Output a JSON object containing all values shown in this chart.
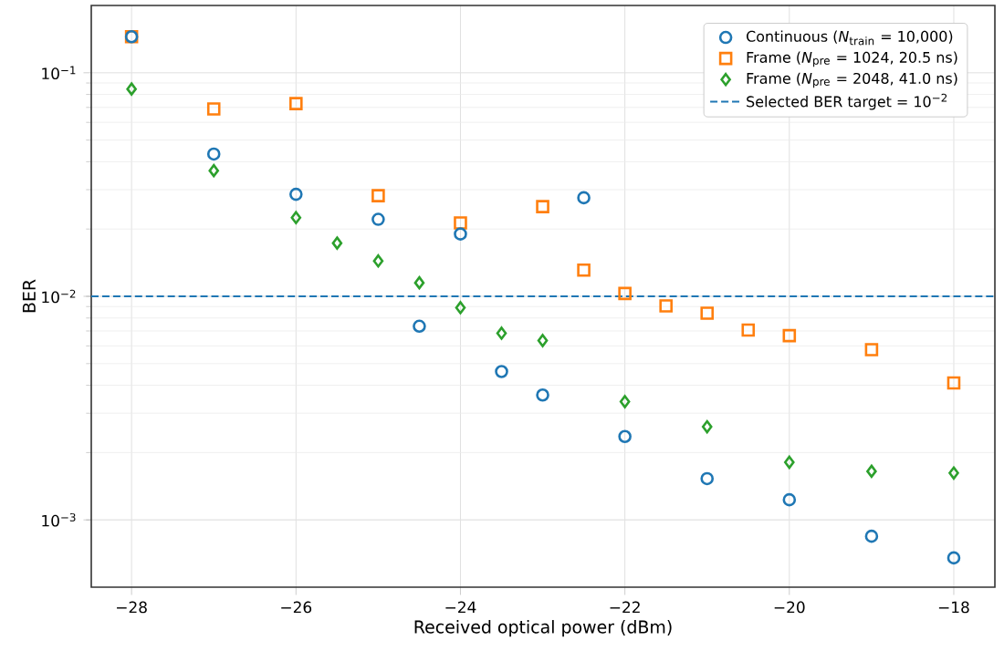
{
  "chart_data": {
    "type": "scatter",
    "xlabel": "Received optical power (dBm)",
    "ylabel": "BER",
    "xlim": [
      -28.49,
      -17.5
    ],
    "ylim": [
      0.0005,
      0.2
    ],
    "log": "y",
    "grid": true,
    "legend": "top right",
    "xticks": [
      {
        "value": -28,
        "label": "−28"
      },
      {
        "value": -26,
        "label": "−26"
      },
      {
        "value": -24,
        "label": "−24"
      },
      {
        "value": -22,
        "label": "−22"
      },
      {
        "value": -20,
        "label": "−20"
      },
      {
        "value": -18,
        "label": "−18"
      }
    ],
    "yticks": [
      {
        "value": 0.001,
        "label": "10$^{−3}$"
      },
      {
        "value": 0.01,
        "label": "10$^{−2}$"
      },
      {
        "value": 0.1,
        "label": "10$^{−1}$"
      }
    ],
    "series": [
      {
        "name": "Continuous (*N*$_{train}$ = 10,000)",
        "color": "#1f77b4",
        "marker": "circle",
        "x": [
          -28,
          -27,
          -26,
          -25,
          -24.5,
          -24,
          -23.5,
          -23,
          -22.5,
          -22,
          -21,
          -20,
          -19,
          -18
        ],
        "values": [
          0.145,
          0.0433,
          0.0286,
          0.0221,
          0.00735,
          0.019,
          0.00461,
          0.00362,
          0.0276,
          0.00236,
          0.00153,
          0.00123,
          0.000845,
          0.000676
        ]
      },
      {
        "name": "Frame (*N*$_{pre}$ = 1024, 20.5 ns)",
        "color": "#ff7f0e",
        "marker": "square",
        "x": [
          -28,
          -27,
          -26,
          -25,
          -24,
          -23,
          -22.5,
          -22,
          -21.5,
          -21,
          -20.5,
          -20,
          -19,
          -18
        ],
        "values": [
          0.145,
          0.0689,
          0.0728,
          0.0282,
          0.0213,
          0.0252,
          0.0131,
          0.0103,
          0.00906,
          0.0084,
          0.00707,
          0.00667,
          0.00577,
          0.0041
        ]
      },
      {
        "name": "Frame (*N*$_{pre}$ = 2048, 41.0 ns)",
        "color": "#2ca02c",
        "marker": "diamond",
        "x": [
          -28,
          -27,
          -26,
          -25.5,
          -25,
          -24.5,
          -24,
          -23.5,
          -23,
          -22,
          -21,
          -20,
          -19,
          -18
        ],
        "values": [
          0.0846,
          0.0365,
          0.0225,
          0.0173,
          0.0144,
          0.0115,
          0.0089,
          0.00684,
          0.00634,
          0.00338,
          0.00261,
          0.00181,
          0.00165,
          0.00162
        ]
      }
    ],
    "ref_lines": [
      {
        "axis": "y",
        "value": 0.01,
        "label": "Selected BER target  = 10$^{−2}$",
        "color": "#1f77b4",
        "line_style": "dashed"
      }
    ]
  }
}
